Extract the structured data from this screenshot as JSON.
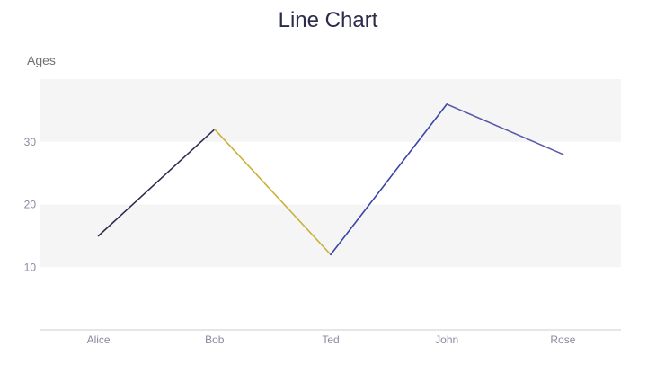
{
  "chart_data": {
    "type": "line",
    "title": "Line Chart",
    "xlabel": "",
    "ylabel": "Ages",
    "categories": [
      "Alice",
      "Bob",
      "Ted",
      "John",
      "Rose"
    ],
    "values": [
      15,
      32,
      12,
      36,
      28
    ],
    "ylim": [
      0,
      40
    ],
    "yticks": [
      10,
      20,
      30
    ],
    "grid": "alternating horizontal bands",
    "legend": "none",
    "segment_colors": [
      "#2c2c4e",
      "#c9b23a",
      "#3b44a8",
      "#5a5aa8"
    ],
    "band_color": "#f5f5f6",
    "axis_color": "#cccccc"
  }
}
